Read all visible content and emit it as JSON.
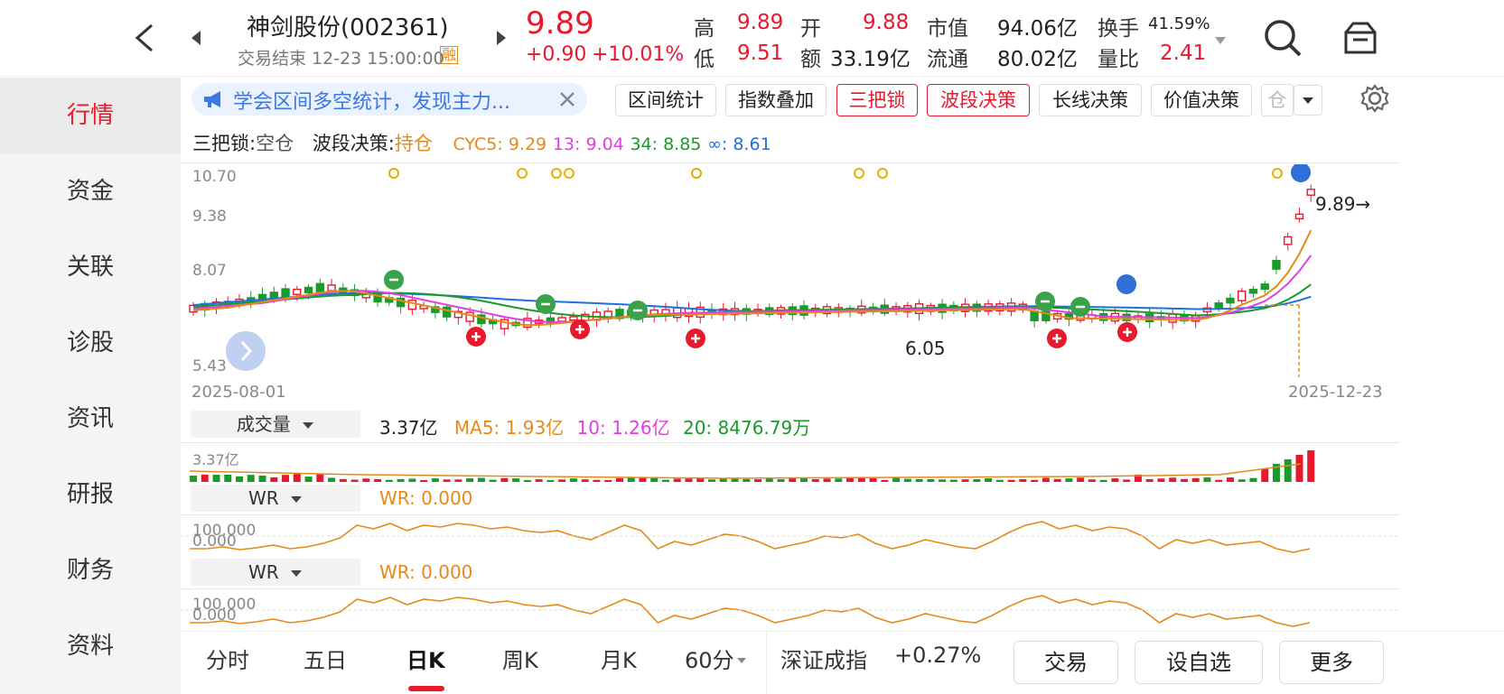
{
  "header": {
    "stock_name": "神剑股份(002361)",
    "status": "交易结束 12-23 15:00:00",
    "margin_badge": "融",
    "price": "9.89",
    "change": "+0.90",
    "change_pct": "+10.01%",
    "stats": [
      {
        "label": "高",
        "value": "9.89",
        "color": "red"
      },
      {
        "label": "开",
        "value": "9.88",
        "color": "red"
      },
      {
        "label": "市值",
        "value": "94.06亿",
        "color": "dark"
      },
      {
        "label": "换手",
        "value": "41.59%",
        "color": "dark"
      },
      {
        "label": "低",
        "value": "9.51",
        "color": "red"
      },
      {
        "label": "额",
        "value": "33.19亿",
        "color": "dark"
      },
      {
        "label": "流通",
        "value": "80.02亿",
        "color": "dark"
      },
      {
        "label": "量比",
        "value": "2.41",
        "color": "red"
      }
    ]
  },
  "sidebar": {
    "items": [
      "行情",
      "资金",
      "关联",
      "诊股",
      "资讯",
      "研报",
      "财务",
      "资料"
    ],
    "active": 0
  },
  "toolbar": {
    "promo": "学会区间多空统计，发现主力...",
    "buttons": [
      "区间统计",
      "指数叠加",
      "三把锁",
      "波段决策",
      "长线决策",
      "价值决策",
      "仓"
    ],
    "active_buttons": [
      "三把锁",
      "波段决策"
    ]
  },
  "signals": {
    "lock_label": "三把锁:",
    "lock_value": "空仓",
    "band_label": "波段决策:",
    "band_value": "持仓",
    "cyc5": "CYC5: 9.29",
    "cyc13": "13: 9.04",
    "cyc34": "34: 8.85",
    "cycinf": "∞: 8.61"
  },
  "kchart": {
    "y_labels": [
      "10.70",
      "9.38",
      "8.07",
      "5.43"
    ],
    "start_date": "2025-08-01",
    "end_date": "2025-12-23",
    "last_price_label": "9.89→",
    "low_label": "6.05",
    "colors": {
      "up": "#e8192c",
      "down": "#1a9a2a",
      "cyc5": "#e58a1a",
      "cyc13": "#e040e0",
      "cyc34": "#1a9a2a",
      "cycinf": "#1e6fe0"
    }
  },
  "volume": {
    "indicator": "成交量",
    "value": "3.37亿",
    "ma5": "MA5: 1.93亿",
    "ma10": "10: 1.26亿",
    "ma20": "20: 8476.79万",
    "axis_max": "3.37亿"
  },
  "wr1": {
    "indicator": "WR",
    "value": "WR: 0.000",
    "axis_top": "100.000",
    "axis_bottom": "0.000"
  },
  "wr2": {
    "indicator": "WR",
    "value": "WR: 0.000",
    "axis_top": "100.000",
    "axis_bottom": "0.000"
  },
  "bottom": {
    "tabs": [
      "分时",
      "五日",
      "日K",
      "周K",
      "月K",
      "60分"
    ],
    "active_tab": 2,
    "index_name": "深证成指",
    "index_change": "+0.27%",
    "trade": "交易",
    "watchlist": "设自选",
    "more": "更多"
  }
}
